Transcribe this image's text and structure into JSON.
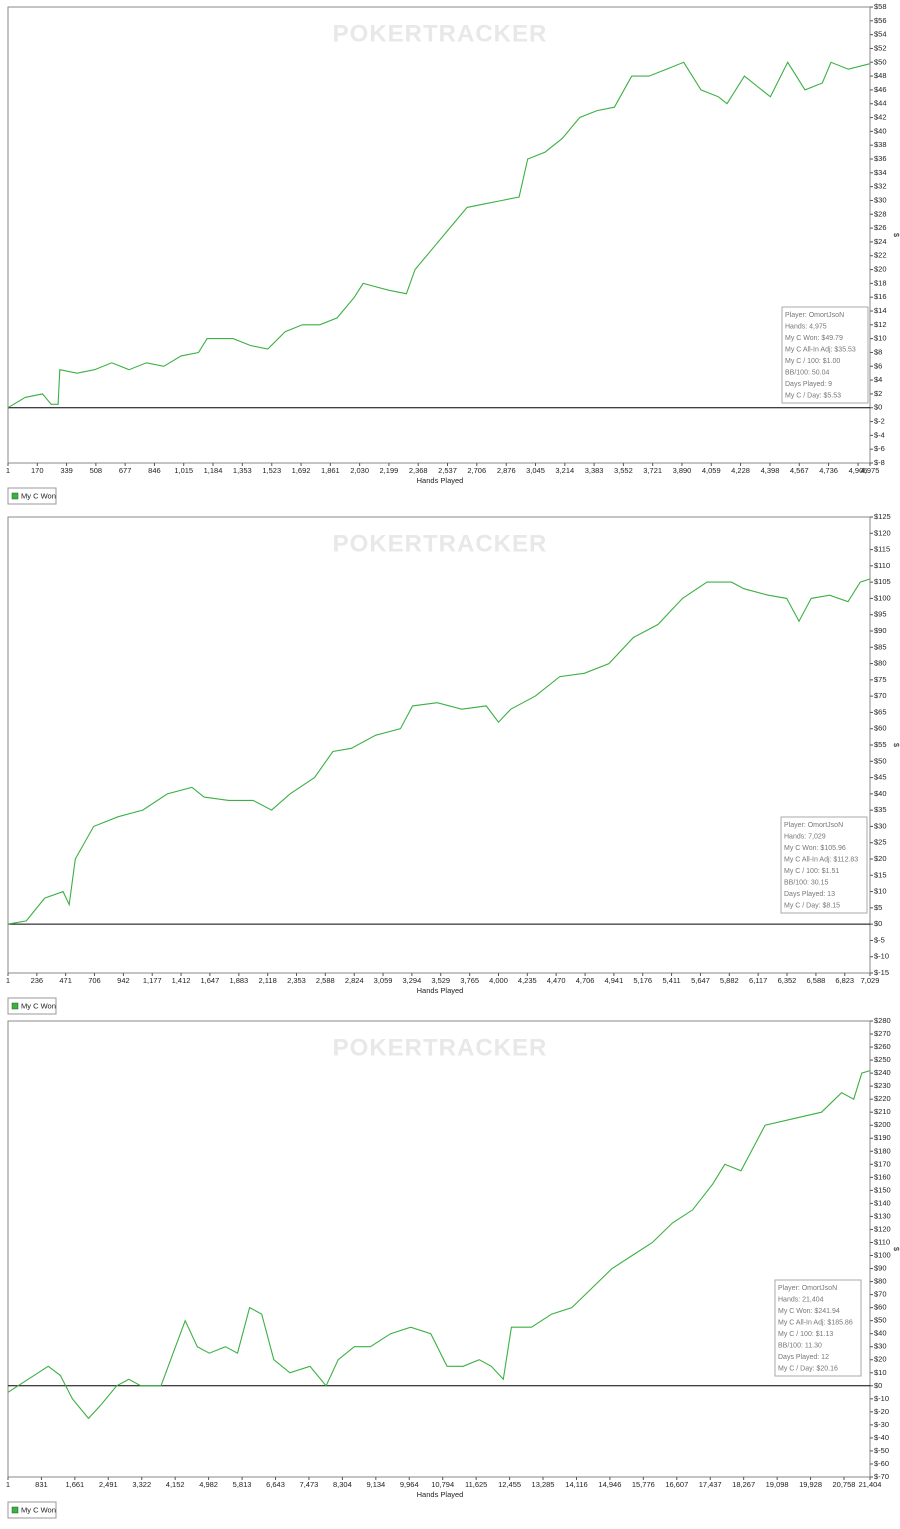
{
  "chart_data": [
    {
      "type": "line",
      "watermark": "POKERTRACKER",
      "x_label": "Hands Played",
      "y_label": "$",
      "zero_line": true,
      "legend": "bottom-left",
      "xlim": [
        1,
        4975
      ],
      "ylim": [
        -8,
        58
      ],
      "xticks": [
        1,
        170,
        339,
        508,
        677,
        846,
        {
          "value": 1015,
          "label": "1,015"
        },
        {
          "value": 1184,
          "label": "1,184"
        },
        {
          "value": 1353,
          "label": "1,353"
        },
        {
          "value": 1523,
          "label": "1,523"
        },
        {
          "value": 1692,
          "label": "1,692"
        },
        {
          "value": 1861,
          "label": "1,861"
        },
        {
          "value": 2030,
          "label": "2,030"
        },
        {
          "value": 2199,
          "label": "2,199"
        },
        {
          "value": 2368,
          "label": "2,368"
        },
        {
          "value": 2537,
          "label": "2,537"
        },
        {
          "value": 2706,
          "label": "2,706"
        },
        {
          "value": 2876,
          "label": "2,876"
        },
        {
          "value": 3045,
          "label": "3,045"
        },
        {
          "value": 3214,
          "label": "3,214"
        },
        {
          "value": 3383,
          "label": "3,383"
        },
        {
          "value": 3552,
          "label": "3,552"
        },
        {
          "value": 3721,
          "label": "3,721"
        },
        {
          "value": 3890,
          "label": "3,890"
        },
        {
          "value": 4059,
          "label": "4,059"
        },
        {
          "value": 4228,
          "label": "4,228"
        },
        {
          "value": 4398,
          "label": "4,398"
        },
        {
          "value": 4567,
          "label": "4,567"
        },
        {
          "value": 4736,
          "label": "4,736"
        },
        {
          "value": 4906,
          "label": "4,906"
        },
        {
          "value": 4975,
          "label": "4,975"
        }
      ],
      "yticks": [
        {
          "value": 58,
          "label": "$58"
        },
        {
          "value": 56,
          "label": "$56"
        },
        {
          "value": 54,
          "label": "$54"
        },
        {
          "value": 52,
          "label": "$52"
        },
        {
          "value": 50,
          "label": "$50"
        },
        {
          "value": 48,
          "label": "$48"
        },
        {
          "value": 46,
          "label": "$46"
        },
        {
          "value": 44,
          "label": "$44"
        },
        {
          "value": 42,
          "label": "$42"
        },
        {
          "value": 40,
          "label": "$40"
        },
        {
          "value": 38,
          "label": "$38"
        },
        {
          "value": 36,
          "label": "$36"
        },
        {
          "value": 34,
          "label": "$34"
        },
        {
          "value": 32,
          "label": "$32"
        },
        {
          "value": 30,
          "label": "$30"
        },
        {
          "value": 28,
          "label": "$28"
        },
        {
          "value": 26,
          "label": "$26"
        },
        {
          "value": 24,
          "label": "$24"
        },
        {
          "value": 22,
          "label": "$22"
        },
        {
          "value": 20,
          "label": "$20"
        },
        {
          "value": 18,
          "label": "$18"
        },
        {
          "value": 16,
          "label": "$16"
        },
        {
          "value": 14,
          "label": "$14"
        },
        {
          "value": 12,
          "label": "$12"
        },
        {
          "value": 10,
          "label": "$10"
        },
        {
          "value": 8,
          "label": "$8"
        },
        {
          "value": 6,
          "label": "$6"
        },
        {
          "value": 4,
          "label": "$4"
        },
        {
          "value": 2,
          "label": "$2"
        },
        {
          "value": 0,
          "label": "$0"
        },
        {
          "value": -2,
          "label": "$-2"
        },
        {
          "value": -4,
          "label": "$-4"
        },
        {
          "value": -6,
          "label": "$-6"
        },
        {
          "value": -8,
          "label": "$-8"
        }
      ],
      "stats": [
        "Player: OmortJsoN",
        "Hands: 4,975",
        "My C Won: $49.79",
        "My C All-In Adj: $35.53",
        "My C / 100: $1.00",
        "BB/100: 50.04",
        "Days Played: 9",
        "My C / Day: $5.53"
      ],
      "x": [
        1,
        100,
        200,
        250,
        290,
        300,
        400,
        500,
        600,
        700,
        800,
        900,
        1000,
        1100,
        1150,
        1300,
        1400,
        1500,
        1600,
        1700,
        1800,
        1900,
        2000,
        2050,
        2200,
        2300,
        2350,
        2450,
        2550,
        2650,
        2750,
        2850,
        2950,
        3000,
        3100,
        3200,
        3300,
        3400,
        3500,
        3600,
        3700,
        3800,
        3900,
        4000,
        4100,
        4150,
        4250,
        4400,
        4500,
        4600,
        4700,
        4750,
        4850,
        4975
      ],
      "series": [
        {
          "name": "My C Won",
          "color": "#3cb043",
          "values": [
            0,
            1.5,
            2,
            0.5,
            0.5,
            5.5,
            5,
            5.5,
            6.5,
            5.5,
            6.5,
            6,
            7.5,
            8,
            10,
            10,
            9,
            8.5,
            11,
            12,
            12,
            13,
            16,
            18,
            17,
            16.5,
            20,
            23,
            26,
            29,
            29.5,
            30,
            30.5,
            36,
            37,
            39,
            42,
            43,
            43.5,
            48,
            48,
            49,
            50,
            46,
            45,
            44,
            48,
            45,
            50,
            46,
            47,
            50,
            49,
            49.79
          ]
        }
      ]
    },
    {
      "type": "line",
      "watermark": "POKERTRACKER",
      "x_label": "Hands Played",
      "y_label": "$",
      "zero_line": true,
      "legend": "bottom-left",
      "xlim": [
        1,
        7029
      ],
      "ylim": [
        -15,
        125
      ],
      "xticks": [
        1,
        236,
        471,
        706,
        942,
        {
          "value": 1177,
          "label": "1,177"
        },
        {
          "value": 1412,
          "label": "1,412"
        },
        {
          "value": 1647,
          "label": "1,647"
        },
        {
          "value": 1883,
          "label": "1,883"
        },
        {
          "value": 2118,
          "label": "2,118"
        },
        {
          "value": 2353,
          "label": "2,353"
        },
        {
          "value": 2588,
          "label": "2,588"
        },
        {
          "value": 2824,
          "label": "2,824"
        },
        {
          "value": 3059,
          "label": "3,059"
        },
        {
          "value": 3294,
          "label": "3,294"
        },
        {
          "value": 3529,
          "label": "3,529"
        },
        {
          "value": 3765,
          "label": "3,765"
        },
        {
          "value": 4000,
          "label": "4,000"
        },
        {
          "value": 4235,
          "label": "4,235"
        },
        {
          "value": 4470,
          "label": "4,470"
        },
        {
          "value": 4706,
          "label": "4,706"
        },
        {
          "value": 4941,
          "label": "4,941"
        },
        {
          "value": 5176,
          "label": "5,176"
        },
        {
          "value": 5411,
          "label": "5,411"
        },
        {
          "value": 5647,
          "label": "5,647"
        },
        {
          "value": 5882,
          "label": "5,882"
        },
        {
          "value": 6117,
          "label": "6,117"
        },
        {
          "value": 6352,
          "label": "6,352"
        },
        {
          "value": 6588,
          "label": "6,588"
        },
        {
          "value": 6823,
          "label": "6,823"
        },
        {
          "value": 7029,
          "label": "7,029"
        }
      ],
      "yticks": [
        {
          "value": 125,
          "label": "$125"
        },
        {
          "value": 120,
          "label": "$120"
        },
        {
          "value": 115,
          "label": "$115"
        },
        {
          "value": 110,
          "label": "$110"
        },
        {
          "value": 105,
          "label": "$105"
        },
        {
          "value": 100,
          "label": "$100"
        },
        {
          "value": 95,
          "label": "$95"
        },
        {
          "value": 90,
          "label": "$90"
        },
        {
          "value": 85,
          "label": "$85"
        },
        {
          "value": 80,
          "label": "$80"
        },
        {
          "value": 75,
          "label": "$75"
        },
        {
          "value": 70,
          "label": "$70"
        },
        {
          "value": 65,
          "label": "$65"
        },
        {
          "value": 60,
          "label": "$60"
        },
        {
          "value": 55,
          "label": "$55"
        },
        {
          "value": 50,
          "label": "$50"
        },
        {
          "value": 45,
          "label": "$45"
        },
        {
          "value": 40,
          "label": "$40"
        },
        {
          "value": 35,
          "label": "$35"
        },
        {
          "value": 30,
          "label": "$30"
        },
        {
          "value": 25,
          "label": "$25"
        },
        {
          "value": 20,
          "label": "$20"
        },
        {
          "value": 15,
          "label": "$15"
        },
        {
          "value": 10,
          "label": "$10"
        },
        {
          "value": 5,
          "label": "$5"
        },
        {
          "value": 0,
          "label": "$0"
        },
        {
          "value": -5,
          "label": "$-5"
        },
        {
          "value": -10,
          "label": "$-10"
        },
        {
          "value": -15,
          "label": "$-15"
        }
      ],
      "stats": [
        "Player: OmortJsoN",
        "Hands: 7,029",
        "My C Won: $105.96",
        "My C All-In Adj: $112.83",
        "My C / 100: $1.51",
        "BB/100: 30.15",
        "Days Played: 13",
        "My C / Day: $8.15"
      ],
      "x": [
        1,
        150,
        300,
        450,
        500,
        550,
        700,
        900,
        1100,
        1300,
        1500,
        1600,
        1800,
        2000,
        2150,
        2300,
        2500,
        2650,
        2800,
        3000,
        3200,
        3300,
        3500,
        3700,
        3900,
        4000,
        4100,
        4300,
        4500,
        4700,
        4900,
        5100,
        5300,
        5500,
        5700,
        5900,
        6000,
        6200,
        6350,
        6450,
        6550,
        6700,
        6850,
        6950,
        7029
      ],
      "series": [
        {
          "name": "My C Won",
          "color": "#3cb043",
          "values": [
            0,
            1,
            8,
            10,
            6,
            20,
            30,
            33,
            35,
            40,
            42,
            39,
            38,
            38,
            35,
            40,
            45,
            53,
            54,
            58,
            60,
            67,
            68,
            66,
            67,
            62,
            66,
            70,
            76,
            77,
            80,
            88,
            92,
            100,
            105,
            105,
            103,
            101,
            100,
            93,
            100,
            101,
            99,
            105,
            105.96
          ]
        }
      ]
    },
    {
      "type": "line",
      "watermark": "POKERTRACKER",
      "x_label": "Hands Played",
      "y_label": "$",
      "zero_line": true,
      "legend": "bottom-left",
      "xlim": [
        1,
        21404
      ],
      "ylim": [
        -70,
        280
      ],
      "xticks": [
        1,
        831,
        {
          "value": 1661,
          "label": "1,661"
        },
        {
          "value": 2491,
          "label": "2,491"
        },
        {
          "value": 3322,
          "label": "3,322"
        },
        {
          "value": 4152,
          "label": "4,152"
        },
        {
          "value": 4982,
          "label": "4,982"
        },
        {
          "value": 5813,
          "label": "5,813"
        },
        {
          "value": 6643,
          "label": "6,643"
        },
        {
          "value": 7473,
          "label": "7,473"
        },
        {
          "value": 8304,
          "label": "8,304"
        },
        {
          "value": 9134,
          "label": "9,134"
        },
        {
          "value": 9964,
          "label": "9,964"
        },
        {
          "value": 10794,
          "label": "10,794"
        },
        {
          "value": 11625,
          "label": "11,625"
        },
        {
          "value": 12455,
          "label": "12,455"
        },
        {
          "value": 13285,
          "label": "13,285"
        },
        {
          "value": 14116,
          "label": "14,116"
        },
        {
          "value": 14946,
          "label": "14,946"
        },
        {
          "value": 15776,
          "label": "15,776"
        },
        {
          "value": 16607,
          "label": "16,607"
        },
        {
          "value": 17437,
          "label": "17,437"
        },
        {
          "value": 18267,
          "label": "18,267"
        },
        {
          "value": 19098,
          "label": "19,098"
        },
        {
          "value": 19928,
          "label": "19,928"
        },
        {
          "value": 20758,
          "label": "20,758"
        },
        {
          "value": 21404,
          "label": "21,404"
        }
      ],
      "yticks": [
        {
          "value": 280,
          "label": "$280"
        },
        {
          "value": 270,
          "label": "$270"
        },
        {
          "value": 260,
          "label": "$260"
        },
        {
          "value": 250,
          "label": "$250"
        },
        {
          "value": 240,
          "label": "$240"
        },
        {
          "value": 230,
          "label": "$230"
        },
        {
          "value": 220,
          "label": "$220"
        },
        {
          "value": 210,
          "label": "$210"
        },
        {
          "value": 200,
          "label": "$200"
        },
        {
          "value": 190,
          "label": "$190"
        },
        {
          "value": 180,
          "label": "$180"
        },
        {
          "value": 170,
          "label": "$170"
        },
        {
          "value": 160,
          "label": "$160"
        },
        {
          "value": 150,
          "label": "$150"
        },
        {
          "value": 140,
          "label": "$140"
        },
        {
          "value": 130,
          "label": "$130"
        },
        {
          "value": 120,
          "label": "$120"
        },
        {
          "value": 110,
          "label": "$110"
        },
        {
          "value": 100,
          "label": "$100"
        },
        {
          "value": 90,
          "label": "$90"
        },
        {
          "value": 80,
          "label": "$80"
        },
        {
          "value": 70,
          "label": "$70"
        },
        {
          "value": 60,
          "label": "$60"
        },
        {
          "value": 50,
          "label": "$50"
        },
        {
          "value": 40,
          "label": "$40"
        },
        {
          "value": 30,
          "label": "$30"
        },
        {
          "value": 20,
          "label": "$20"
        },
        {
          "value": 10,
          "label": "$10"
        },
        {
          "value": 0,
          "label": "$0"
        },
        {
          "value": -10,
          "label": "$-10"
        },
        {
          "value": -20,
          "label": "$-20"
        },
        {
          "value": -30,
          "label": "$-30"
        },
        {
          "value": -40,
          "label": "$-40"
        },
        {
          "value": -50,
          "label": "$-50"
        },
        {
          "value": -60,
          "label": "$-60"
        },
        {
          "value": -70,
          "label": "$-70"
        }
      ],
      "stats": [
        "Player: OmortJsoN",
        "Hands: 21,404",
        "My C Won: $241.94",
        "My C All-In Adj: $185.86",
        "My C / 100: $1.13",
        "BB/100: 11.30",
        "Days Played: 12",
        "My C / Day: $20.16"
      ],
      "x": [
        1,
        500,
        1000,
        1300,
        1600,
        2000,
        2300,
        2700,
        3000,
        3300,
        3800,
        4100,
        4400,
        4700,
        5000,
        5400,
        5700,
        6000,
        6300,
        6600,
        7000,
        7500,
        7900,
        8200,
        8600,
        9000,
        9500,
        10000,
        10500,
        10900,
        11300,
        11700,
        12000,
        12300,
        12500,
        13000,
        13500,
        14000,
        14500,
        15000,
        15500,
        16000,
        16500,
        17000,
        17500,
        17800,
        18200,
        18800,
        19500,
        20200,
        20700,
        21000,
        21200,
        21404
      ],
      "series": [
        {
          "name": "My C Won",
          "color": "#3cb043",
          "values": [
            -5,
            5,
            15,
            8,
            -10,
            -25,
            -15,
            0,
            5,
            0,
            0,
            25,
            50,
            30,
            25,
            30,
            25,
            60,
            55,
            20,
            10,
            15,
            0,
            20,
            30,
            30,
            40,
            45,
            40,
            15,
            15,
            20,
            15,
            5,
            45,
            45,
            55,
            60,
            75,
            90,
            100,
            110,
            125,
            135,
            155,
            170,
            165,
            200,
            205,
            210,
            225,
            220,
            240,
            241.94
          ]
        }
      ]
    }
  ]
}
